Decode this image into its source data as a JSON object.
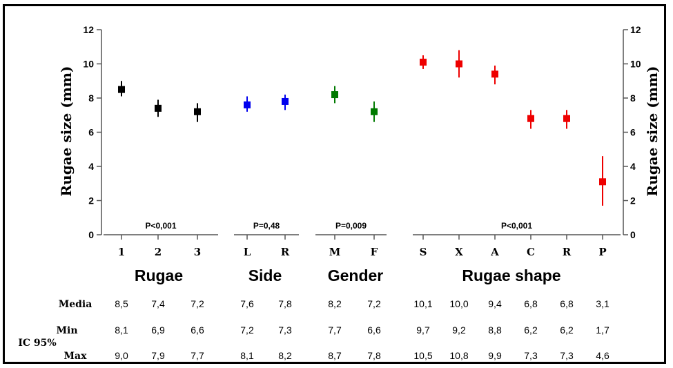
{
  "chart_data": {
    "type": "scatter",
    "ylabel": "Rugae size (mm)",
    "ylim": [
      0,
      12
    ],
    "yticks": [
      "0",
      "2",
      "4",
      "6",
      "8",
      "10",
      "12"
    ],
    "right_axis": true,
    "grid": false,
    "groups": [
      {
        "name": "Rugae",
        "pvalue": "P<0,001",
        "color": "#000000",
        "categories": [
          "1",
          "2",
          "3"
        ],
        "mean": [
          8.5,
          7.4,
          7.2
        ],
        "min": [
          8.1,
          6.9,
          6.6
        ],
        "max": [
          9.0,
          7.9,
          7.7
        ]
      },
      {
        "name": "Side",
        "pvalue": "P=0,48",
        "color": "#0000ee",
        "categories": [
          "L",
          "R"
        ],
        "mean": [
          7.6,
          7.8
        ],
        "min": [
          7.2,
          7.3
        ],
        "max": [
          8.1,
          8.2
        ]
      },
      {
        "name": "Gender",
        "pvalue": "P=0,009",
        "color": "#007a00",
        "categories": [
          "M",
          "F"
        ],
        "mean": [
          8.2,
          7.2
        ],
        "min": [
          7.7,
          6.6
        ],
        "max": [
          8.7,
          7.8
        ]
      },
      {
        "name": "Rugae shape",
        "pvalue": "P<0,001",
        "color": "#ee0000",
        "categories": [
          "S",
          "X",
          "A",
          "C",
          "R",
          "P"
        ],
        "mean": [
          10.1,
          10.0,
          9.4,
          6.8,
          6.8,
          3.1
        ],
        "min": [
          9.7,
          9.2,
          8.8,
          6.2,
          6.2,
          1.7
        ],
        "max": [
          10.5,
          10.8,
          9.9,
          7.3,
          7.3,
          4.6
        ]
      }
    ]
  },
  "table": {
    "rows": [
      {
        "label": "Media",
        "values": [
          "8,5",
          "7,4",
          "7,2",
          "7,6",
          "7,8",
          "8,2",
          "7,2",
          "10,1",
          "10,0",
          "9,4",
          "6,8",
          "6,8",
          "3,1"
        ]
      },
      {
        "label": "Min",
        "values": [
          "8,1",
          "6,9",
          "6,6",
          "7,2",
          "7,3",
          "7,7",
          "6,6",
          "9,7",
          "9,2",
          "8,8",
          "6,2",
          "6,2",
          "1,7"
        ]
      },
      {
        "label": "Max",
        "values": [
          "9,0",
          "7,9",
          "7,7",
          "8,1",
          "8,2",
          "8,7",
          "7,8",
          "10,5",
          "10,8",
          "9,9",
          "7,3",
          "7,3",
          "4,6"
        ]
      }
    ],
    "ci_label": "IC 95%"
  }
}
